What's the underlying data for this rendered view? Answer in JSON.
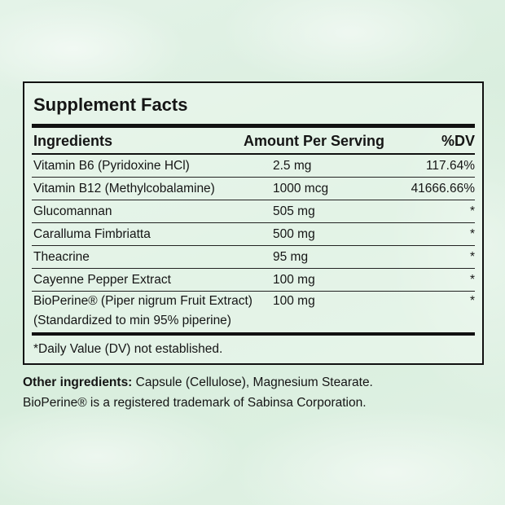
{
  "title": "Supplement Facts",
  "table": {
    "header": [
      "Ingredients",
      "Amount Per Serving",
      "%DV"
    ],
    "rows": [
      [
        "Vitamin B6 (Pyridoxine HCl)",
        "2.5 mg",
        "117.64%"
      ],
      [
        "Vitamin B12 (Methylcobalamine)",
        "1000 mcg",
        "41666.66%"
      ],
      [
        "Glucomannan",
        "505 mg",
        "*"
      ],
      [
        "Caralluma Fimbriatta",
        "500 mg",
        "*"
      ],
      [
        "Theacrine",
        "95 mg",
        "*"
      ],
      [
        "Cayenne Pepper Extract",
        "100 mg",
        "*"
      ],
      [
        [
          "BioPerine® (Piper nigrum Fruit Extract)",
          "(Standardized to min 95% piperine)"
        ],
        "100 mg",
        "*"
      ]
    ]
  },
  "footnote": "*Daily Value (DV) not established.",
  "other_ingredients": {
    "label": "Other ingredients:",
    "text": "Capsule (Cellulose), Magnesium Stearate."
  },
  "trademark": "BioPerine® is a registered trademark of Sabinsa Corporation."
}
